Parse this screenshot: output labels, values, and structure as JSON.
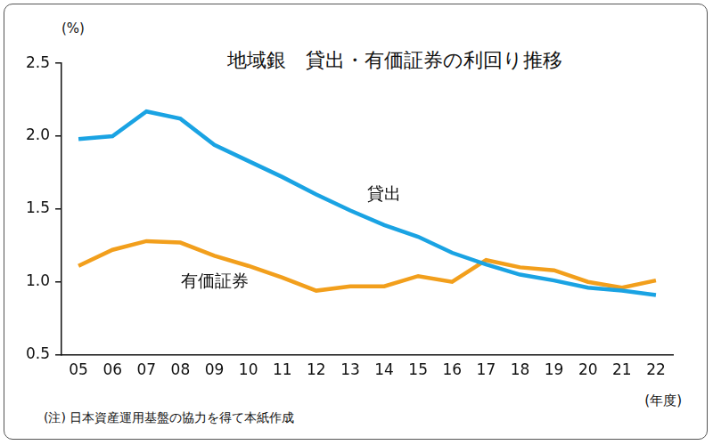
{
  "chart_data": {
    "type": "line",
    "title": "地域銀　貸出・有価証券の利回り推移",
    "ylabel": "(%)",
    "xlabel": "(年度)",
    "note": "(注) 日本資産運用基盤の協力を得て本紙作成",
    "categories": [
      "05",
      "06",
      "07",
      "08",
      "09",
      "10",
      "11",
      "12",
      "13",
      "14",
      "15",
      "16",
      "17",
      "18",
      "19",
      "20",
      "21",
      "22"
    ],
    "series": [
      {
        "name": "貸出",
        "color": "#1aa3e3",
        "values": [
          1.98,
          2.0,
          2.17,
          2.12,
          1.94,
          1.83,
          1.72,
          1.6,
          1.49,
          1.39,
          1.31,
          1.2,
          1.12,
          1.05,
          1.01,
          0.96,
          0.94,
          0.91
        ]
      },
      {
        "name": "有価証券",
        "color": "#f29f1c",
        "values": [
          1.11,
          1.22,
          1.28,
          1.27,
          1.18,
          1.11,
          1.03,
          0.94,
          0.97,
          0.97,
          1.04,
          1.0,
          1.15,
          1.1,
          1.08,
          1.0,
          0.96,
          1.01
        ]
      }
    ],
    "ylim": [
      0.5,
      2.5
    ],
    "yticks": [
      0.5,
      {
        "value": 1,
        "label": "1.0"
      },
      1.5,
      {
        "value": 2,
        "label": "2.0"
      },
      2.5
    ],
    "grid": false
  }
}
